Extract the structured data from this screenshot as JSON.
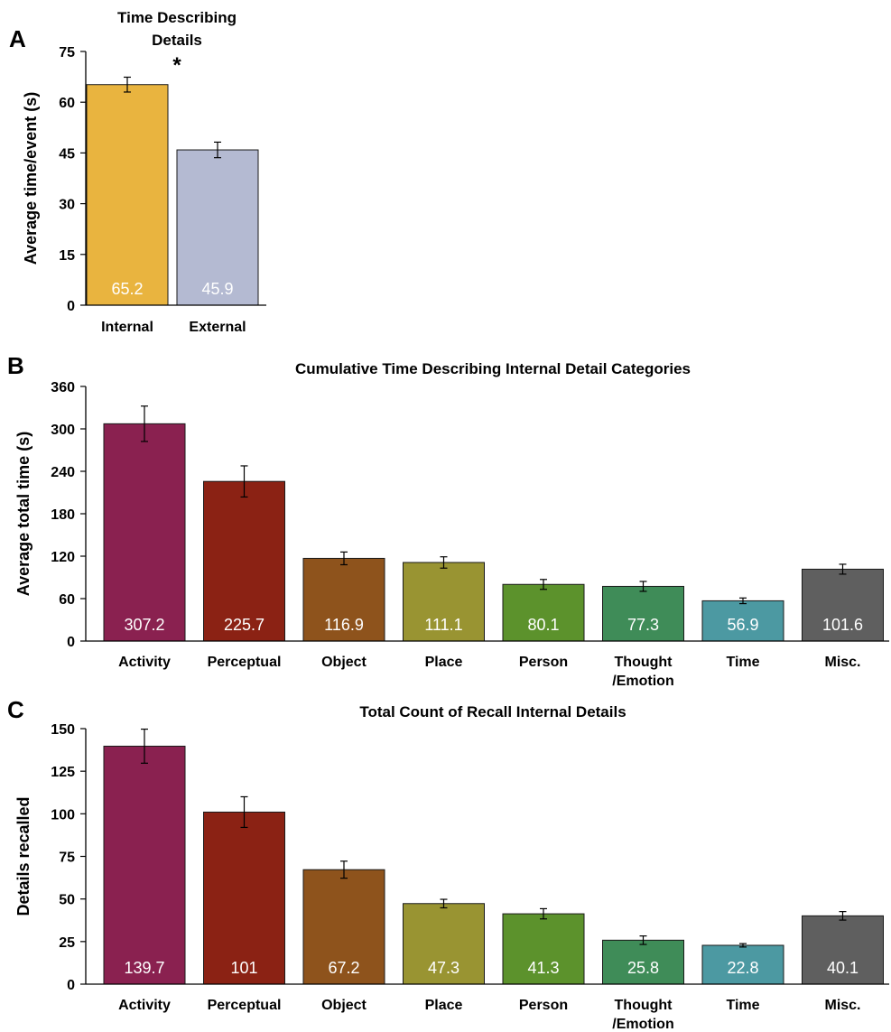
{
  "chart_data": [
    {
      "panel": "A",
      "type": "bar",
      "title_lines": [
        "Time Describing",
        "Details"
      ],
      "ylabel": "Average time/event (s)",
      "ylim": [
        0,
        75
      ],
      "yticks": [
        0,
        15,
        30,
        45,
        60,
        75
      ],
      "categories": [
        [
          "Internal"
        ],
        [
          "External"
        ]
      ],
      "values": [
        65.2,
        45.9
      ],
      "errors": [
        2.2,
        2.3
      ],
      "value_labels": [
        "65.2",
        "45.9"
      ],
      "colors": [
        "#E9B43F",
        "#B4BAD2"
      ],
      "annotation": "*"
    },
    {
      "panel": "B",
      "type": "bar",
      "title": "Cumulative Time Describing Internal Detail Categories",
      "ylabel": "Average total time (s)",
      "ylim": [
        0,
        360
      ],
      "yticks": [
        0,
        60,
        120,
        180,
        240,
        300,
        360
      ],
      "categories": [
        [
          "Activity"
        ],
        [
          "Perceptual"
        ],
        [
          "Object"
        ],
        [
          "Place"
        ],
        [
          "Person"
        ],
        [
          "Thought",
          "/Emotion"
        ],
        [
          "Time"
        ],
        [
          "Misc."
        ]
      ],
      "values": [
        307.2,
        225.7,
        116.9,
        111.1,
        80.1,
        77.3,
        56.9,
        101.6
      ],
      "errors": [
        25,
        22,
        9,
        8,
        7,
        7,
        4,
        7
      ],
      "value_labels": [
        "307.2",
        "225.7",
        "116.9",
        "111.1",
        "80.1",
        "77.3",
        "56.9",
        "101.6"
      ],
      "colors": [
        "#8A2150",
        "#8B2214",
        "#8E531C",
        "#999432",
        "#5C922C",
        "#3F8C58",
        "#4C99A2",
        "#5F5F5F"
      ]
    },
    {
      "panel": "C",
      "type": "bar",
      "title": "Total Count of Recall Internal Details",
      "ylabel": "Details recalled",
      "ylim": [
        0,
        150
      ],
      "yticks": [
        0,
        25,
        50,
        75,
        100,
        125,
        150
      ],
      "categories": [
        [
          "Activity"
        ],
        [
          "Perceptual"
        ],
        [
          "Object"
        ],
        [
          "Place"
        ],
        [
          "Person"
        ],
        [
          "Thought",
          "/Emotion"
        ],
        [
          "Time"
        ],
        [
          "Misc."
        ]
      ],
      "values": [
        139.7,
        101,
        67.2,
        47.3,
        41.3,
        25.8,
        22.8,
        40.1
      ],
      "errors": [
        10,
        9,
        5,
        2.5,
        3,
        2.5,
        1,
        2.5
      ],
      "value_labels": [
        "139.7",
        "101",
        "67.2",
        "47.3",
        "41.3",
        "25.8",
        "22.8",
        "40.1"
      ],
      "colors": [
        "#8A2150",
        "#8B2214",
        "#8E531C",
        "#999432",
        "#5C922C",
        "#3F8C58",
        "#4C99A2",
        "#5F5F5F"
      ]
    }
  ]
}
